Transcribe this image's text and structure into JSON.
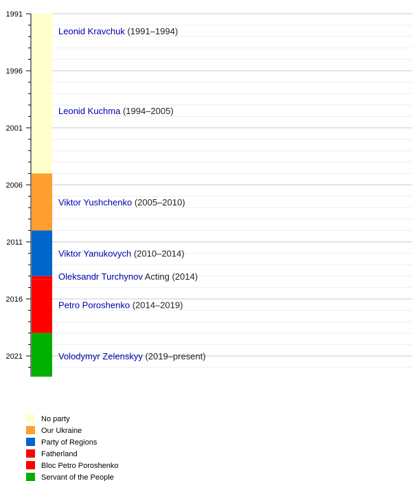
{
  "chart_data": {
    "type": "bar",
    "orientation": "vertical-timeline",
    "ylim": [
      1991,
      2023
    ],
    "major_ticks": [
      1991,
      1996,
      2001,
      2006,
      2011,
      2016,
      2021
    ],
    "grid": true,
    "legend_position": "bottom-left",
    "segments": [
      {
        "start": 1991,
        "end": 2005,
        "party": "No party",
        "color": "#ffffcc"
      },
      {
        "start": 2005,
        "end": 2010,
        "party": "Our Ukraine",
        "color": "#ff9f2f"
      },
      {
        "start": 2010,
        "end": 2014,
        "party": "Party of Regions",
        "color": "#0066cc"
      },
      {
        "start": 2014,
        "end": 2014.3,
        "party": "Fatherland",
        "color": "#ff0000"
      },
      {
        "start": 2014.3,
        "end": 2019,
        "party": "Bloc Petro Poroshenko",
        "color": "#ff0000"
      },
      {
        "start": 2019,
        "end": 2023,
        "party": "Servant of the People",
        "color": "#00b000"
      }
    ],
    "labels": [
      {
        "at": 1992.5,
        "name": "Leonid Kravchuk",
        "note": "(1991–1994)"
      },
      {
        "at": 1999.5,
        "name": "Leonid Kuchma",
        "note": "(1994–2005)"
      },
      {
        "at": 2007.5,
        "name": "Viktor Yushchenko",
        "note": "(2005–2010)"
      },
      {
        "at": 2012,
        "name": "Viktor Yanukovych",
        "note": "(2010–2014)"
      },
      {
        "at": 2014,
        "name": "Oleksandr Turchynov",
        "note": "Acting (2014)"
      },
      {
        "at": 2016.5,
        "name": "Petro Poroshenko",
        "note": "(2014–2019)"
      },
      {
        "at": 2021,
        "name": "Volodymyr Zelenskyy",
        "note": "(2019–present)"
      }
    ],
    "legend": [
      {
        "label": "No party",
        "color": "#ffffcc"
      },
      {
        "label": "Our Ukraine",
        "color": "#ff9f2f"
      },
      {
        "label": "Party of Regions",
        "color": "#0066cc"
      },
      {
        "label": "Fatherland",
        "color": "#ff0000"
      },
      {
        "label": "Bloc Petro Poroshenko",
        "color": "#ff0000"
      },
      {
        "label": "Servant of the People",
        "color": "#00b000"
      }
    ]
  }
}
